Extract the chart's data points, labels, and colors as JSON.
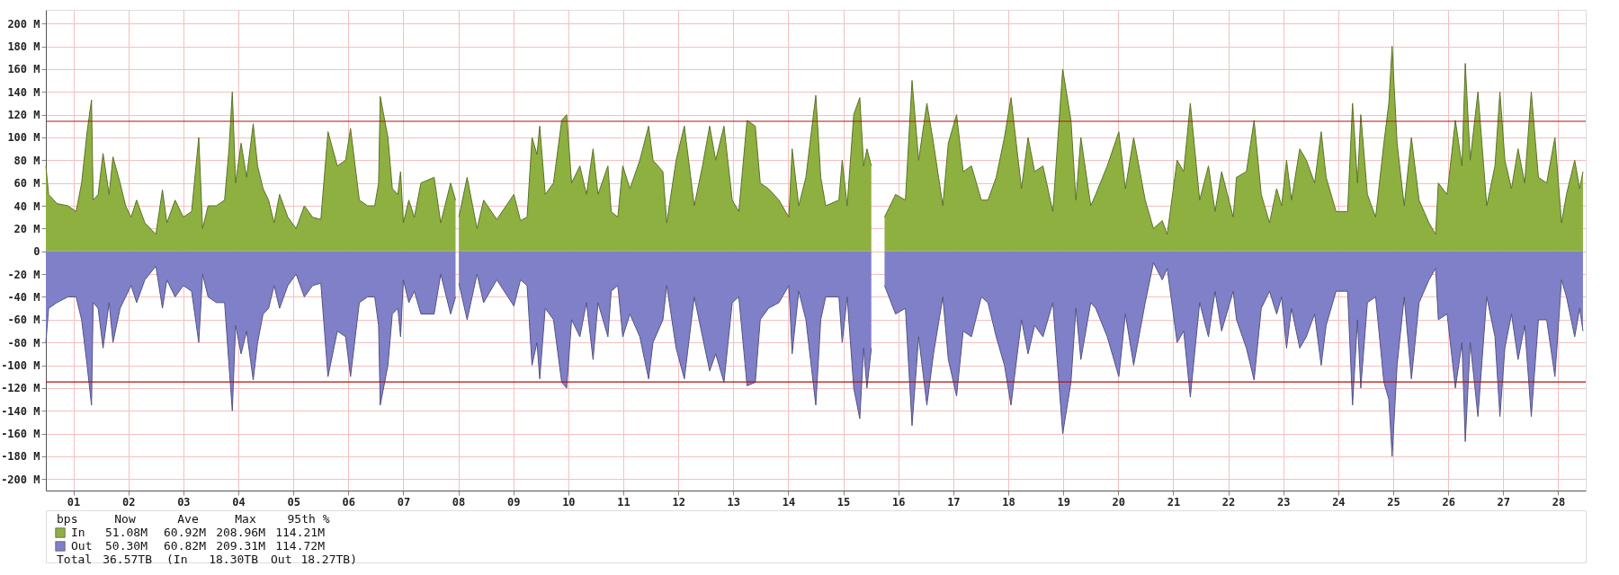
{
  "chart_data": {
    "type": "area",
    "x": [
      0.0,
      0.05,
      0.2,
      0.4,
      0.55,
      0.65,
      0.75,
      0.83,
      0.86,
      0.95,
      1.04,
      1.15,
      1.22,
      1.35,
      1.45,
      1.55,
      1.65,
      1.8,
      2.0,
      2.12,
      2.2,
      2.35,
      2.5,
      2.65,
      2.78,
      2.85,
      2.95,
      3.1,
      3.25,
      3.33,
      3.39,
      3.45,
      3.55,
      3.65,
      3.77,
      3.85,
      3.95,
      4.05,
      4.15,
      4.25,
      4.4,
      4.55,
      4.7,
      4.85,
      5.0,
      5.13,
      5.3,
      5.45,
      5.54,
      5.7,
      5.85,
      5.98,
      6.05,
      6.08,
      6.22,
      6.3,
      6.4,
      6.45,
      6.5,
      6.6,
      6.7,
      6.82,
      7.06,
      7.18,
      7.36,
      7.45,
      7.47,
      7.51,
      7.66,
      7.84,
      7.96,
      8.2,
      8.51,
      8.63,
      8.75,
      8.84,
      8.93,
      8.98,
      9.08,
      9.23,
      9.38,
      9.47,
      9.56,
      9.71,
      9.83,
      9.95,
      10.04,
      10.22,
      10.28,
      10.4,
      10.49,
      10.62,
      10.8,
      10.96,
      11.04,
      11.22,
      11.29,
      11.46,
      11.61,
      11.79,
      11.94,
      12.07,
      12.18,
      12.33,
      12.48,
      12.6,
      12.75,
      12.9,
      12.99,
      13.14,
      13.33,
      13.51,
      13.57,
      13.69,
      13.82,
      14.0,
      14.09,
      14.18,
      14.42,
      14.48,
      14.57,
      14.69,
      14.8,
      14.87,
      14.93,
      15.01,
      15.1,
      15.25,
      15.45,
      15.63,
      15.75,
      15.87,
      16.02,
      16.14,
      16.31,
      16.41,
      16.56,
      16.68,
      16.83,
      17.01,
      17.13,
      17.28,
      17.43,
      17.55,
      17.74,
      17.86,
      17.98,
      18.13,
      18.31,
      18.49,
      18.64,
      18.73,
      18.82,
      19.0,
      19.09,
      19.3,
      19.51,
      19.63,
      19.78,
      19.99,
      20.14,
      20.3,
      20.39,
      20.57,
      20.69,
      20.81,
      20.98,
      21.14,
      21.26,
      21.38,
      21.59,
      21.65,
      21.83,
      21.97,
      22.1,
      22.25,
      22.38,
      22.47,
      22.56,
      22.65,
      22.8,
      22.92,
      23.07,
      23.19,
      23.28,
      23.46,
      23.67,
      23.76,
      23.85,
      23.91,
      24.03,
      24.18,
      24.33,
      24.42,
      24.48,
      24.57,
      24.7,
      24.83,
      24.97,
      25.15,
      25.27,
      25.32,
      25.48,
      25.63,
      25.75,
      25.81,
      25.9,
      26.04,
      26.2,
      26.35,
      26.44,
      26.53,
      26.65,
      26.77,
      26.89,
      27.01,
      27.14,
      27.29,
      27.44,
      27.56,
      27.65,
      27.8,
      27.89,
      27.95
    ],
    "series": [
      {
        "name": "In",
        "color": "#8db040",
        "values": [
          75,
          50,
          42,
          40,
          35,
          60,
          105,
          133,
          45,
          50,
          86,
          50,
          83,
          60,
          40,
          30,
          45,
          25,
          15,
          54,
          25,
          45,
          30,
          35,
          100,
          20,
          40,
          40,
          45,
          90,
          140,
          60,
          95,
          65,
          112,
          75,
          55,
          45,
          25,
          50,
          30,
          20,
          40,
          30,
          28,
          105,
          75,
          80,
          108,
          45,
          40,
          40,
          60,
          136,
          100,
          55,
          50,
          70,
          25,
          45,
          30,
          60,
          65,
          25,
          60,
          45,
          null,
          30,
          65,
          20,
          45,
          28,
          50,
          27,
          30,
          100,
          85,
          110,
          50,
          60,
          115,
          120,
          60,
          75,
          50,
          90,
          50,
          75,
          35,
          30,
          75,
          55,
          80,
          110,
          80,
          70,
          25,
          80,
          110,
          40,
          75,
          110,
          80,
          110,
          45,
          35,
          115,
          110,
          60,
          55,
          45,
          30,
          90,
          40,
          65,
          137,
          65,
          40,
          45,
          80,
          40,
          120,
          135,
          75,
          90,
          75,
          null,
          30,
          50,
          45,
          150,
          80,
          130,
          95,
          40,
          95,
          120,
          70,
          75,
          45,
          45,
          65,
          100,
          135,
          55,
          100,
          70,
          75,
          35,
          160,
          115,
          45,
          100,
          40,
          50,
          75,
          105,
          55,
          100,
          45,
          20,
          27,
          15,
          80,
          70,
          130,
          45,
          75,
          35,
          70,
          30,
          65,
          70,
          115,
          50,
          25,
          55,
          40,
          80,
          45,
          90,
          80,
          60,
          105,
          65,
          35,
          35,
          130,
          60,
          120,
          50,
          30,
          95,
          130,
          180,
          95,
          40,
          100,
          45,
          25,
          15,
          60,
          50,
          115,
          75,
          165,
          80,
          140,
          40,
          75,
          140,
          80,
          55,
          90,
          60,
          140,
          65,
          60,
          100,
          25,
          50,
          80,
          55,
          70
        ]
      },
      {
        "name": "Out",
        "color": "#8080c8",
        "values": [
          -80,
          -50,
          -45,
          -40,
          -40,
          -60,
          -100,
          -135,
          -45,
          -50,
          -85,
          -45,
          -80,
          -50,
          -40,
          -30,
          -45,
          -25,
          -13,
          -50,
          -25,
          -40,
          -30,
          -35,
          -80,
          -20,
          -40,
          -45,
          -45,
          -100,
          -140,
          -65,
          -90,
          -70,
          -113,
          -80,
          -55,
          -50,
          -30,
          -50,
          -30,
          -20,
          -40,
          -30,
          -28,
          -110,
          -70,
          -75,
          -110,
          -45,
          -40,
          -40,
          -65,
          -135,
          -100,
          -55,
          -50,
          -75,
          -25,
          -45,
          -35,
          -55,
          -55,
          -20,
          -55,
          -40,
          null,
          -28,
          -60,
          -20,
          -45,
          -25,
          -48,
          -25,
          -30,
          -100,
          -80,
          -112,
          -50,
          -60,
          -115,
          -120,
          -60,
          -75,
          -45,
          -95,
          -45,
          -75,
          -35,
          -30,
          -75,
          -55,
          -75,
          -112,
          -80,
          -60,
          -30,
          -85,
          -112,
          -40,
          -75,
          -105,
          -90,
          -115,
          -45,
          -40,
          -118,
          -115,
          -60,
          -50,
          -45,
          -30,
          -90,
          -35,
          -60,
          -135,
          -60,
          -40,
          -40,
          -80,
          -40,
          -120,
          -147,
          -85,
          -120,
          -85,
          null,
          -30,
          -55,
          -50,
          -153,
          -75,
          -135,
          -90,
          -40,
          -95,
          -127,
          -70,
          -75,
          -40,
          -45,
          -75,
          -100,
          -135,
          -60,
          -90,
          -65,
          -75,
          -45,
          -160,
          -115,
          -50,
          -95,
          -45,
          -50,
          -75,
          -110,
          -55,
          -100,
          -45,
          -10,
          -25,
          -15,
          -80,
          -70,
          -128,
          -45,
          -75,
          -35,
          -70,
          -35,
          -60,
          -85,
          -113,
          -50,
          -35,
          -55,
          -40,
          -85,
          -50,
          -85,
          -75,
          -55,
          -100,
          -65,
          -35,
          -35,
          -135,
          -60,
          -120,
          -45,
          -40,
          -115,
          -130,
          -180,
          -100,
          -40,
          -112,
          -45,
          -25,
          -15,
          -60,
          -55,
          -120,
          -80,
          -167,
          -80,
          -145,
          -40,
          -75,
          -145,
          -85,
          -55,
          -95,
          -65,
          -145,
          -60,
          -60,
          -110,
          -25,
          -40,
          -75,
          -50,
          -70
        ]
      }
    ],
    "xlim": [
      0,
      28
    ],
    "xticks": [
      {
        "value": 0.5,
        "label": "01"
      },
      {
        "value": 1.5,
        "label": "02"
      },
      {
        "value": 2.5,
        "label": "03"
      },
      {
        "value": 3.5,
        "label": "04"
      },
      {
        "value": 4.5,
        "label": "05"
      },
      {
        "value": 5.5,
        "label": "06"
      },
      {
        "value": 6.5,
        "label": "07"
      },
      {
        "value": 7.5,
        "label": "08"
      },
      {
        "value": 8.5,
        "label": "09"
      },
      {
        "value": 9.5,
        "label": "10"
      },
      {
        "value": 10.5,
        "label": "11"
      },
      {
        "value": 11.5,
        "label": "12"
      },
      {
        "value": 12.5,
        "label": "13"
      },
      {
        "value": 13.5,
        "label": "14"
      },
      {
        "value": 14.5,
        "label": "15"
      },
      {
        "value": 15.5,
        "label": "16"
      },
      {
        "value": 16.5,
        "label": "17"
      },
      {
        "value": 17.5,
        "label": "18"
      },
      {
        "value": 18.5,
        "label": "19"
      },
      {
        "value": 19.5,
        "label": "20"
      },
      {
        "value": 20.5,
        "label": "21"
      },
      {
        "value": 21.5,
        "label": "22"
      },
      {
        "value": 22.5,
        "label": "23"
      },
      {
        "value": 23.5,
        "label": "24"
      },
      {
        "value": 24.5,
        "label": "25"
      },
      {
        "value": 25.5,
        "label": "26"
      },
      {
        "value": 26.5,
        "label": "27"
      },
      {
        "value": 27.5,
        "label": "28"
      }
    ],
    "ylim": [
      -210,
      212
    ],
    "yticks": [
      {
        "value": -200,
        "label": "-200 M"
      },
      {
        "value": -180,
        "label": "-180 M"
      },
      {
        "value": -160,
        "label": "-160 M"
      },
      {
        "value": -140,
        "label": "-140 M"
      },
      {
        "value": -120,
        "label": "-120 M"
      },
      {
        "value": -100,
        "label": "-100 M"
      },
      {
        "value": -80,
        "label": "-80 M"
      },
      {
        "value": -60,
        "label": "-60 M"
      },
      {
        "value": -40,
        "label": "-40 M"
      },
      {
        "value": -20,
        "label": "-20 M"
      },
      0,
      {
        "value": 20,
        "label": "20 M"
      },
      {
        "value": 40,
        "label": "40 M"
      },
      {
        "value": 60,
        "label": "60 M"
      },
      {
        "value": 80,
        "label": "80 M"
      },
      {
        "value": 100,
        "label": "100 M"
      },
      {
        "value": 120,
        "label": "120 M"
      },
      {
        "value": 140,
        "label": "140 M"
      },
      {
        "value": 160,
        "label": "160 M"
      },
      {
        "value": 180,
        "label": "180 M"
      },
      {
        "value": 200,
        "label": "200 M"
      }
    ],
    "ref_lines": [
      {
        "axis": "y",
        "value": 114.21,
        "color": "#b01010"
      },
      {
        "axis": "y",
        "value": -114.72,
        "color": "#b01010"
      }
    ],
    "grid": true,
    "legend": "bottom left",
    "annotations": [
      "bps",
      "Now",
      "Ave",
      "Max",
      "95th %",
      "51.08M",
      "60.92M",
      "208.96M",
      "114.21M",
      "50.30M",
      "60.82M",
      "209.31M",
      "114.72M",
      "Total",
      "36.57TB",
      "(In",
      "18.30TB",
      "Out",
      "18.27TB)"
    ]
  }
}
